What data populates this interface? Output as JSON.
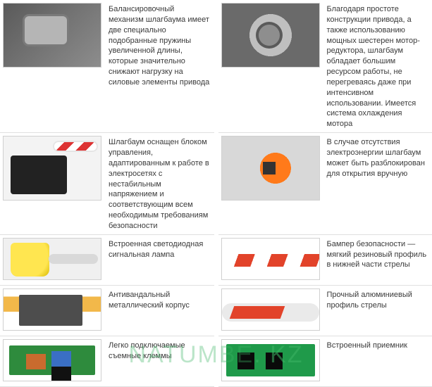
{
  "features": [
    {
      "text": "Балансировочный механизм шлагбаума имеет две специально подобранные пружины увеличенной длины, которые значительно снижают нагрузку на силовые элементы привода",
      "thumb": "mech"
    },
    {
      "text": "Благодаря простоте конструкции привода, а также использованию мощных шестерен мотор-редуктора, шлагбаум обладает большим ресурсом работы, не перегреваясь даже при интенсивном использовании. Имеется система охлаждения мотора",
      "thumb": "gears"
    },
    {
      "text": "Шлагбаум оснащен блоком управления, адаптированным к работе в электросетях с нестабильным напряжением и соответствующим всем необходимым требованиям безопасности",
      "thumb": "controlbox"
    },
    {
      "text": "В случае отсутствия электроэнергии шлагбаум может быть разблокирован для открытия вручную",
      "thumb": "release"
    },
    {
      "text": "Встроенная светодиодная сигнальная лампа",
      "thumb": "lamp"
    },
    {
      "text": "Бампер безопасности — мягкий резиновый профиль в нижней части стрелы",
      "thumb": "bumper"
    },
    {
      "text": "Антивандальный металлический корпус",
      "thumb": "case"
    },
    {
      "text": "Прочный алюминиевый профиль стрелы",
      "thumb": "profile"
    },
    {
      "text": "Легко подключаемые съемные клеммы",
      "thumb": "pcb1"
    },
    {
      "text": "Встроенный приемник",
      "thumb": "pcb2"
    }
  ],
  "watermark": {
    "left": "NATUMBE",
    "right": ". KZ"
  }
}
